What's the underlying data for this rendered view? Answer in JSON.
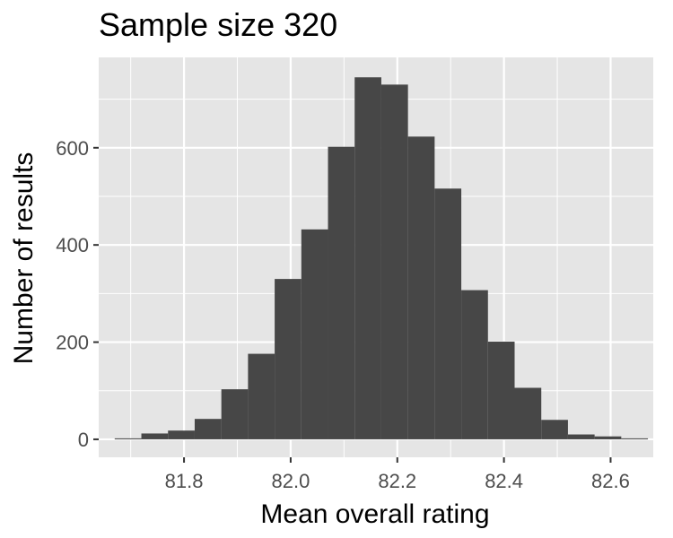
{
  "chart_data": {
    "type": "bar",
    "title": "Sample size 320",
    "xlabel": "Mean overall rating",
    "ylabel": "Number of results",
    "x_ticks": [
      "81.8",
      "82.0",
      "82.2",
      "82.4",
      "82.6"
    ],
    "y_ticks": [
      "0",
      "200",
      "400",
      "600"
    ],
    "xlim": [
      81.64,
      82.68
    ],
    "ylim": [
      -37,
      786
    ],
    "bin_edges": [
      81.67,
      81.72,
      81.77,
      81.82,
      81.87,
      81.92,
      81.97,
      82.02,
      82.07,
      82.12,
      82.17,
      82.22,
      82.27,
      82.32,
      82.37,
      82.42,
      82.47,
      82.52,
      82.57,
      82.62,
      82.67
    ],
    "values": [
      2,
      12,
      18,
      42,
      103,
      176,
      330,
      432,
      602,
      745,
      730,
      623,
      516,
      307,
      201,
      106,
      40,
      10,
      6,
      2
    ],
    "grid": true,
    "background": "#e5e5e5",
    "grid_color": "#ffffff",
    "bar_color": "#474747"
  }
}
